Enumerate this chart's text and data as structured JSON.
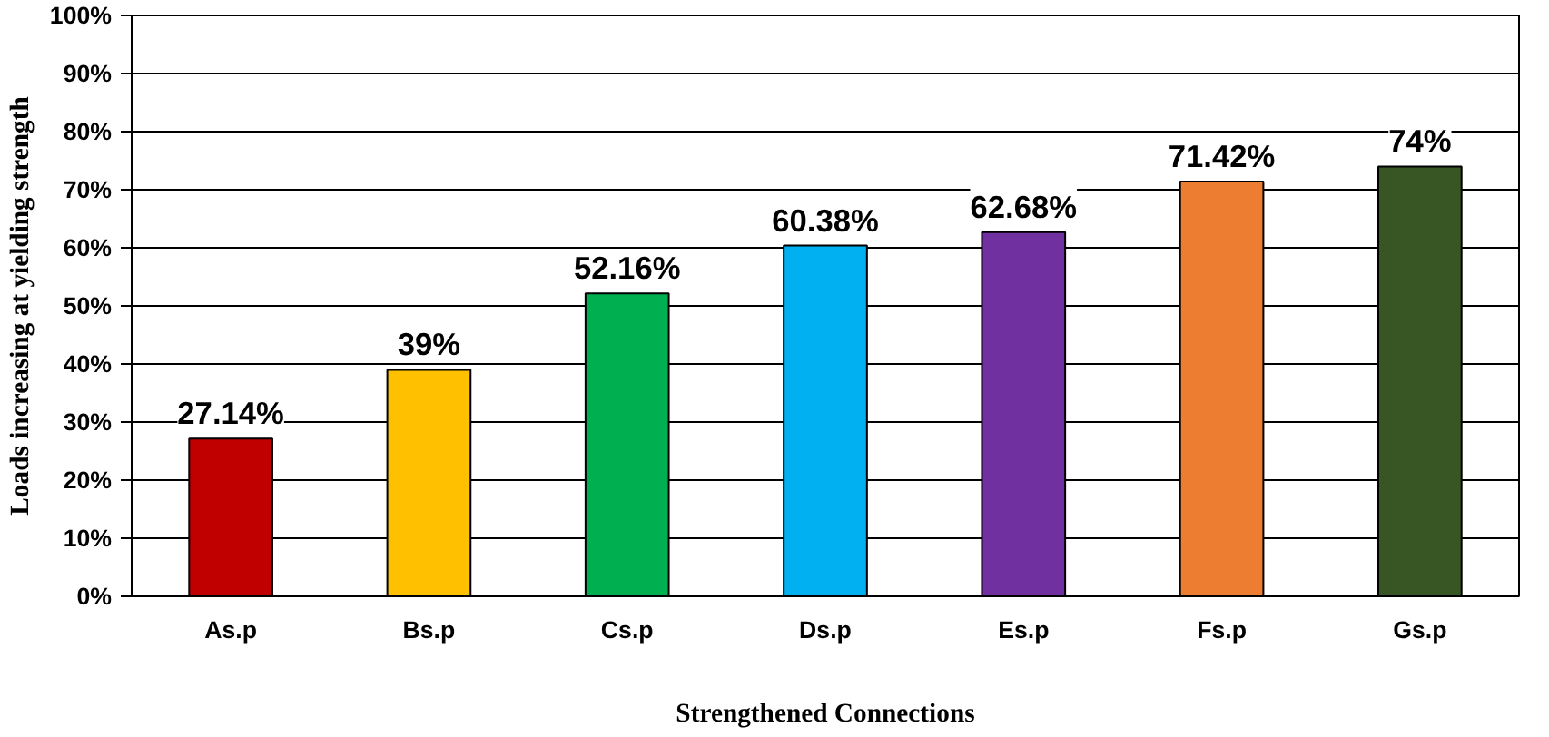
{
  "chart_data": {
    "type": "bar",
    "xlabel": "Strengthened Connections",
    "ylabel": "Loads increasing at yielding strength",
    "categories": [
      "As.p",
      "Bs.p",
      "Cs.p",
      "Ds.p",
      "Es.p",
      "Fs.p",
      "Gs.p"
    ],
    "values": [
      27.14,
      39,
      52.16,
      60.38,
      62.68,
      71.42,
      74
    ],
    "colors": [
      "#c00000",
      "#ffc000",
      "#00b050",
      "#00b0f0",
      "#7030a0",
      "#ed7d31",
      "#375623"
    ],
    "value_labels": [
      "27.14%",
      "39%",
      "52.16%",
      "60.38%",
      "62.68%",
      "71.42%",
      "74%"
    ],
    "ylim": [
      0,
      100
    ],
    "yticks": [
      {
        "value": 0,
        "label": "0%"
      },
      {
        "value": 10,
        "label": "10%"
      },
      {
        "value": 20,
        "label": "20%"
      },
      {
        "value": 30,
        "label": "30%"
      },
      {
        "value": 40,
        "label": "40%"
      },
      {
        "value": 50,
        "label": "50%"
      },
      {
        "value": 60,
        "label": "60%"
      },
      {
        "value": 70,
        "label": "70%"
      },
      {
        "value": 80,
        "label": "80%"
      },
      {
        "value": 90,
        "label": "90%"
      },
      {
        "value": 100,
        "label": "100%"
      }
    ],
    "grid": "y"
  }
}
